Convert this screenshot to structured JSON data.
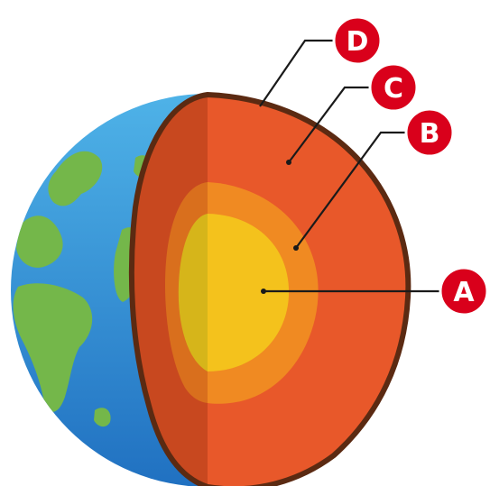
{
  "labels": {
    "a": "A",
    "b": "B",
    "c": "C",
    "d": "D"
  },
  "colors": {
    "ocean": "#2f8fd6",
    "land": "#74b74a",
    "crust_outline": "#5b2a12",
    "mantle": "#e8582a",
    "outer_core": "#f08a22",
    "inner_core": "#f4c21c",
    "badge": "#d9001b",
    "leader_line": "#1a1a1a"
  }
}
